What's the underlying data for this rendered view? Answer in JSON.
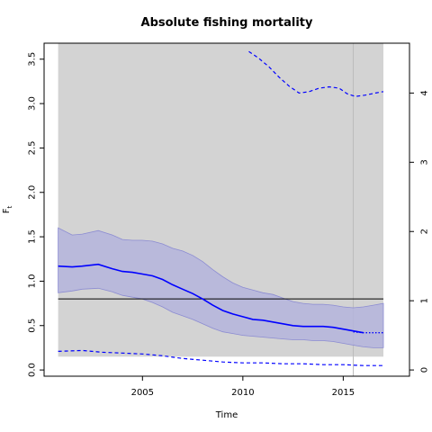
{
  "chart_data": {
    "type": "line",
    "title": "Absolute fishing mortality",
    "xlabel": "Time",
    "ylabel": "F",
    "ylabel_subscript": "t",
    "xlim": [
      2000.1,
      2018.3
    ],
    "ylim": [
      -0.07,
      3.68
    ],
    "y2lim": [
      -0.09,
      4.72
    ],
    "x_ticks": [
      2005,
      2010,
      2015
    ],
    "y_ticks": [
      0.0,
      0.5,
      1.0,
      1.5,
      2.0,
      2.5,
      3.0,
      3.5
    ],
    "y2_ticks": [
      0,
      1,
      2,
      3,
      4
    ],
    "shaded_region": {
      "x": [
        2000.8,
        2017.0
      ],
      "y": [
        0.15,
        3.68
      ],
      "color": "#d3d3d3"
    },
    "reference_line": {
      "y": 0.8,
      "color": "#000000"
    },
    "vertical_line": {
      "x": 2015.5,
      "color": "#bbbbbb"
    },
    "colors": {
      "main": "#0000ff",
      "band_fill": "#b4b4dc",
      "band_edge": "#8c8cd2"
    },
    "series": [
      {
        "role": "estimate",
        "style": "solid",
        "x": [
          2000.8,
          2001.5,
          2002.0,
          2002.8,
          2003.5,
          2004.0,
          2004.5,
          2005.0,
          2005.5,
          2006.0,
          2006.5,
          2007.0,
          2007.5,
          2008.0,
          2008.5,
          2009.0,
          2009.5,
          2010.0,
          2010.5,
          2011.0,
          2011.5,
          2012.0,
          2012.5,
          2013.0,
          2013.5,
          2014.0,
          2014.5,
          2015.0,
          2015.5,
          2016.0
        ],
        "y": [
          1.17,
          1.16,
          1.17,
          1.19,
          1.14,
          1.11,
          1.1,
          1.08,
          1.06,
          1.02,
          0.96,
          0.91,
          0.86,
          0.8,
          0.73,
          0.67,
          0.63,
          0.6,
          0.57,
          0.56,
          0.54,
          0.52,
          0.5,
          0.49,
          0.49,
          0.49,
          0.48,
          0.46,
          0.44,
          0.42
        ]
      },
      {
        "role": "forecast",
        "style": "dotted",
        "x": [
          2015.5,
          2016.0,
          2016.5,
          2017.0
        ],
        "y": [
          0.43,
          0.42,
          0.42,
          0.42
        ]
      },
      {
        "role": "band_upper",
        "x": [
          2000.8,
          2001.5,
          2002.0,
          2002.8,
          2003.5,
          2004.0,
          2004.5,
          2005.0,
          2005.5,
          2006.0,
          2006.5,
          2007.0,
          2007.5,
          2008.0,
          2008.5,
          2009.0,
          2009.5,
          2010.0,
          2010.5,
          2011.0,
          2011.5,
          2012.0,
          2012.5,
          2013.0,
          2013.5,
          2014.0,
          2014.5,
          2015.0,
          2015.5,
          2016.0,
          2016.5,
          2017.0
        ],
        "y": [
          1.6,
          1.52,
          1.53,
          1.57,
          1.52,
          1.47,
          1.46,
          1.46,
          1.45,
          1.42,
          1.37,
          1.34,
          1.29,
          1.22,
          1.13,
          1.05,
          0.98,
          0.93,
          0.9,
          0.87,
          0.85,
          0.81,
          0.77,
          0.75,
          0.74,
          0.74,
          0.73,
          0.71,
          0.7,
          0.71,
          0.73,
          0.75
        ]
      },
      {
        "role": "band_lower",
        "x": [
          2000.8,
          2001.5,
          2002.0,
          2002.8,
          2003.5,
          2004.0,
          2004.5,
          2005.0,
          2005.5,
          2006.0,
          2006.5,
          2007.0,
          2007.5,
          2008.0,
          2008.5,
          2009.0,
          2009.5,
          2010.0,
          2010.5,
          2011.0,
          2011.5,
          2012.0,
          2012.5,
          2013.0,
          2013.5,
          2014.0,
          2014.5,
          2015.0,
          2015.5,
          2016.0,
          2016.5,
          2017.0
        ],
        "y": [
          0.87,
          0.89,
          0.91,
          0.92,
          0.88,
          0.84,
          0.82,
          0.8,
          0.76,
          0.71,
          0.65,
          0.61,
          0.57,
          0.52,
          0.47,
          0.43,
          0.41,
          0.39,
          0.38,
          0.37,
          0.36,
          0.35,
          0.34,
          0.34,
          0.33,
          0.33,
          0.32,
          0.3,
          0.28,
          0.26,
          0.25,
          0.25
        ]
      },
      {
        "role": "upper_dashed",
        "style": "dashed",
        "axis": "y2",
        "x": [
          2010.3,
          2010.8,
          2011.3,
          2011.8,
          2012.3,
          2012.8,
          2013.3,
          2013.8,
          2014.3,
          2014.8,
          2015.2,
          2015.6,
          2016.1,
          2016.6,
          2017.0
        ],
        "y": [
          4.6,
          4.5,
          4.38,
          4.23,
          4.1,
          4.0,
          4.02,
          4.07,
          4.09,
          4.07,
          3.99,
          3.95,
          3.97,
          4.0,
          4.02
        ]
      },
      {
        "role": "lower_dashed",
        "style": "dashed",
        "x": [
          2000.8,
          2002.0,
          2003.0,
          2004.0,
          2005.0,
          2006.0,
          2007.0,
          2008.0,
          2009.0,
          2010.0,
          2011.0,
          2012.0,
          2013.0,
          2014.0,
          2015.0,
          2016.0,
          2017.0
        ],
        "y": [
          0.21,
          0.22,
          0.2,
          0.19,
          0.18,
          0.16,
          0.13,
          0.11,
          0.09,
          0.08,
          0.08,
          0.07,
          0.07,
          0.06,
          0.06,
          0.05,
          0.05
        ]
      }
    ]
  }
}
